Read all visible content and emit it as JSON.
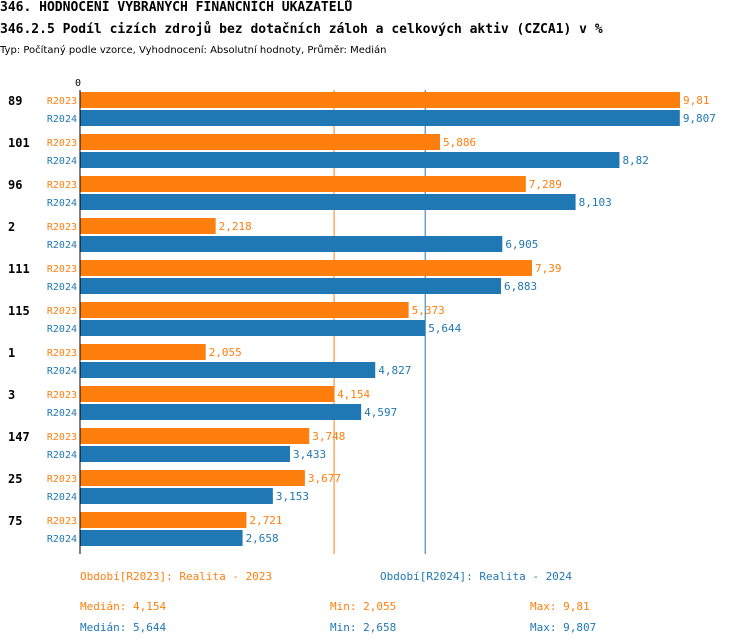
{
  "header": {
    "title": "346. HODNOCENÍ VYBRANÝCH FINANČNÍCH UKAZATELŮ",
    "subtitle": "346.2.5 Podíl cizích zdrojů bez dotačních záloh  a celkových aktiv (CZCA1) v %",
    "type_line": "Typ: Počítaný podle vzorce, Vyhodnocení: Absolutní hodnoty, Průměr: Medián"
  },
  "chart_data": {
    "type": "bar",
    "orientation": "horizontal",
    "axis_zero_label": "0",
    "categories": [
      "89",
      "101",
      "96",
      "2",
      "111",
      "115",
      "1",
      "3",
      "147",
      "25",
      "75"
    ],
    "series": [
      {
        "name": "R2023",
        "color": "#ff7f0e",
        "values": [
          9.81,
          5.886,
          7.289,
          2.218,
          7.39,
          5.373,
          2.055,
          4.154,
          3.748,
          3.677,
          2.721
        ],
        "value_labels": [
          "9,81",
          "5,886",
          "7,289",
          "2,218",
          "7,39",
          "5,373",
          "2,055",
          "4,154",
          "3,748",
          "3,677",
          "2,721"
        ]
      },
      {
        "name": "R2024",
        "color": "#1f77b4",
        "values": [
          9.807,
          8.82,
          8.103,
          6.905,
          6.883,
          5.644,
          4.827,
          4.597,
          3.433,
          3.153,
          2.658
        ],
        "value_labels": [
          "9,807",
          "8,82",
          "8,103",
          "6,905",
          "6,883",
          "5,644",
          "4,827",
          "4,597",
          "3,433",
          "3,153",
          "2,658"
        ]
      }
    ],
    "xlim": [
      0,
      9.81
    ],
    "median_lines": [
      {
        "value": 4.154,
        "color": "#ff7f0e"
      },
      {
        "value": 5.644,
        "color": "#1f77b4"
      }
    ]
  },
  "legend": {
    "r2023": "Období[R2023]: Realita - 2023",
    "r2024": "Období[R2024]: Realita - 2024"
  },
  "stats": {
    "r2023": {
      "median": "Medián: 4,154",
      "min": "Min: 2,055",
      "max": "Max: 9,81"
    },
    "r2024": {
      "median": "Medián: 5,644",
      "min": "Min: 2,658",
      "max": "Max: 9,807"
    }
  }
}
